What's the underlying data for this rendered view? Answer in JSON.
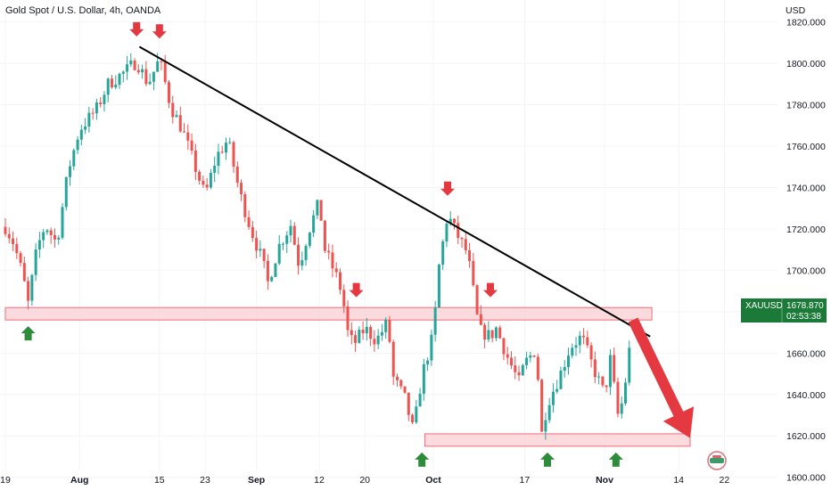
{
  "header": {
    "title": "Gold Spot / U.S. Dollar, 4h, OANDA"
  },
  "price_label": {
    "symbol": "XAUUSD",
    "price": "1678.870",
    "countdown": "02:53:38"
  },
  "colors": {
    "up": "#26a69a",
    "down": "#ef5350",
    "trendline": "#000000",
    "zone_fill": "#f9cfd3",
    "zone_border": "#f26c7a",
    "arrow_red": "#e53942",
    "arrow_green": "#2e8b3a",
    "label_bg": "#1b7a38"
  },
  "chart_data": {
    "type": "candlestick",
    "symbol": "XAUUSD",
    "timeframe": "4h",
    "source": "OANDA",
    "y_axis_unit": "USD",
    "ylim": [
      1596,
      1822
    ],
    "yticks": [
      {
        "value": 1600,
        "label": "1600.000"
      },
      {
        "value": 1620,
        "label": "1620.000"
      },
      {
        "value": 1640,
        "label": "1640.000"
      },
      {
        "value": 1660,
        "label": "1660.000"
      },
      {
        "value": 1680,
        "label": "1680.000"
      },
      {
        "value": 1700,
        "label": "1700.000"
      },
      {
        "value": 1720,
        "label": "1720.000"
      },
      {
        "value": 1740,
        "label": "1740.000"
      },
      {
        "value": 1760,
        "label": "1760.000"
      },
      {
        "value": 1780,
        "label": "1780.000"
      },
      {
        "value": 1800,
        "label": "1800.000"
      },
      {
        "value": 1820,
        "label": "1820.000"
      }
    ],
    "x_range_days": [
      0,
      127
    ],
    "xticks": [
      {
        "day": 0,
        "label": "19",
        "bold": false
      },
      {
        "day": 13,
        "label": "Aug",
        "bold": true
      },
      {
        "day": 27,
        "label": "15",
        "bold": false
      },
      {
        "day": 35,
        "label": "23",
        "bold": false
      },
      {
        "day": 44,
        "label": "Sep",
        "bold": true
      },
      {
        "day": 55,
        "label": "12",
        "bold": false
      },
      {
        "day": 63,
        "label": "20",
        "bold": false
      },
      {
        "day": 75,
        "label": "Oct",
        "bold": true
      },
      {
        "day": 91,
        "label": "17",
        "bold": false
      },
      {
        "day": 105,
        "label": "Nov",
        "bold": true
      },
      {
        "day": 118,
        "label": "14",
        "bold": false
      },
      {
        "day": 126,
        "label": "22",
        "bold": false
      }
    ],
    "anchors": [
      {
        "day": 0,
        "price": 1721
      },
      {
        "day": 1.5,
        "price": 1713
      },
      {
        "day": 3,
        "price": 1698
      },
      {
        "day": 4,
        "price": 1684
      },
      {
        "day": 5.5,
        "price": 1710
      },
      {
        "day": 7,
        "price": 1722
      },
      {
        "day": 9,
        "price": 1713
      },
      {
        "day": 11,
        "price": 1748
      },
      {
        "day": 13,
        "price": 1768
      },
      {
        "day": 16,
        "price": 1778
      },
      {
        "day": 18,
        "price": 1790
      },
      {
        "day": 21,
        "price": 1796
      },
      {
        "day": 23,
        "price": 1801
      },
      {
        "day": 25,
        "price": 1790
      },
      {
        "day": 27,
        "price": 1802
      },
      {
        "day": 29,
        "price": 1779
      },
      {
        "day": 31,
        "price": 1768
      },
      {
        "day": 33,
        "price": 1752
      },
      {
        "day": 35,
        "price": 1736
      },
      {
        "day": 37,
        "price": 1755
      },
      {
        "day": 39,
        "price": 1763
      },
      {
        "day": 41,
        "price": 1738
      },
      {
        "day": 43,
        "price": 1720
      },
      {
        "day": 45,
        "price": 1705
      },
      {
        "day": 46,
        "price": 1694
      },
      {
        "day": 48,
        "price": 1712
      },
      {
        "day": 50,
        "price": 1722
      },
      {
        "day": 51.5,
        "price": 1702
      },
      {
        "day": 53,
        "price": 1718
      },
      {
        "day": 55,
        "price": 1733
      },
      {
        "day": 56,
        "price": 1710
      },
      {
        "day": 58,
        "price": 1697
      },
      {
        "day": 59,
        "price": 1689
      },
      {
        "day": 60,
        "price": 1670
      },
      {
        "day": 61,
        "price": 1664
      },
      {
        "day": 63,
        "price": 1672
      },
      {
        "day": 65,
        "price": 1666
      },
      {
        "day": 67,
        "price": 1675
      },
      {
        "day": 68,
        "price": 1648
      },
      {
        "day": 70,
        "price": 1638
      },
      {
        "day": 71.5,
        "price": 1622
      },
      {
        "day": 73,
        "price": 1649
      },
      {
        "day": 75,
        "price": 1669
      },
      {
        "day": 76,
        "price": 1702
      },
      {
        "day": 77.5,
        "price": 1727
      },
      {
        "day": 79,
        "price": 1718
      },
      {
        "day": 81,
        "price": 1708
      },
      {
        "day": 82,
        "price": 1690
      },
      {
        "day": 83,
        "price": 1671
      },
      {
        "day": 85,
        "price": 1668
      },
      {
        "day": 86,
        "price": 1672
      },
      {
        "day": 88,
        "price": 1658
      },
      {
        "day": 90,
        "price": 1646
      },
      {
        "day": 91,
        "price": 1655
      },
      {
        "day": 93,
        "price": 1662
      },
      {
        "day": 94,
        "price": 1621
      },
      {
        "day": 95,
        "price": 1636
      },
      {
        "day": 97,
        "price": 1648
      },
      {
        "day": 99,
        "price": 1663
      },
      {
        "day": 101,
        "price": 1668
      },
      {
        "day": 103,
        "price": 1653
      },
      {
        "day": 105,
        "price": 1640
      },
      {
        "day": 106,
        "price": 1657
      },
      {
        "day": 107.5,
        "price": 1627
      },
      {
        "day": 109,
        "price": 1652
      },
      {
        "day": 110,
        "price": 1679
      }
    ],
    "trendline": {
      "start": {
        "day": 23.5,
        "price": 1808
      },
      "end": {
        "day": 113,
        "price": 1668
      }
    },
    "zones": [
      {
        "name": "resistance-support-zone",
        "day_start": 0,
        "day_end": 113.3,
        "price_low": 1676,
        "price_high": 1682
      },
      {
        "name": "bottom-support-zone",
        "day_start": 73.5,
        "day_end": 120,
        "price_low": 1615,
        "price_high": 1621
      }
    ],
    "down_arrows": [
      {
        "day": 23,
        "price": 1813
      },
      {
        "day": 27,
        "price": 1812
      },
      {
        "day": 77.5,
        "price": 1736
      },
      {
        "day": 61.5,
        "price": 1687
      },
      {
        "day": 85,
        "price": 1687
      }
    ],
    "up_arrows": [
      {
        "day": 4,
        "price": 1673
      },
      {
        "day": 73,
        "price": 1612
      },
      {
        "day": 95,
        "price": 1612
      },
      {
        "day": 107,
        "price": 1612
      }
    ],
    "projection_arrow": {
      "from": {
        "day": 110,
        "price": 1676
      },
      "to": {
        "day": 120,
        "price": 1619
      }
    }
  }
}
